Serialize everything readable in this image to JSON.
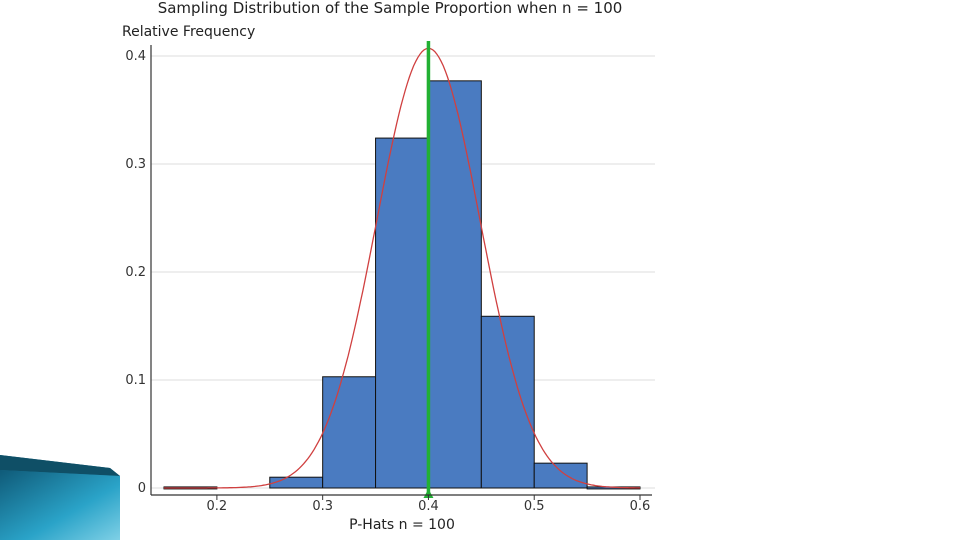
{
  "chart_data": {
    "type": "bar",
    "title": "Sampling Distribution of the Sample Proportion when n = 100",
    "ylabel": "Relative Frequency",
    "xlabel": "P-Hats n = 100",
    "x_ticks": [
      "0.2",
      "0.3",
      "0.4",
      "0.5",
      "0.6"
    ],
    "y_ticks": [
      "0",
      "0.1",
      "0.2",
      "0.3",
      "0.4"
    ],
    "xlim": [
      0.15,
      0.6
    ],
    "ylim": [
      0,
      0.4
    ],
    "grid": true,
    "bins": [
      {
        "start": 0.15,
        "end": 0.2,
        "value": 0.001
      },
      {
        "start": 0.2,
        "end": 0.25,
        "value": 0.0
      },
      {
        "start": 0.25,
        "end": 0.3,
        "value": 0.01
      },
      {
        "start": 0.3,
        "end": 0.35,
        "value": 0.103
      },
      {
        "start": 0.35,
        "end": 0.4,
        "value": 0.324
      },
      {
        "start": 0.4,
        "end": 0.45,
        "value": 0.377
      },
      {
        "start": 0.45,
        "end": 0.5,
        "value": 0.159
      },
      {
        "start": 0.5,
        "end": 0.55,
        "value": 0.023
      },
      {
        "start": 0.55,
        "end": 0.6,
        "value": 0.001
      }
    ],
    "normal_curve": {
      "mean": 0.4,
      "sd": 0.049
    },
    "reference_line": {
      "x": 0.4
    },
    "colors": {
      "bar": "#4a7bc1",
      "curve": "#d04040",
      "reference": "#22b033",
      "decoration": "#1c8fb0"
    }
  }
}
